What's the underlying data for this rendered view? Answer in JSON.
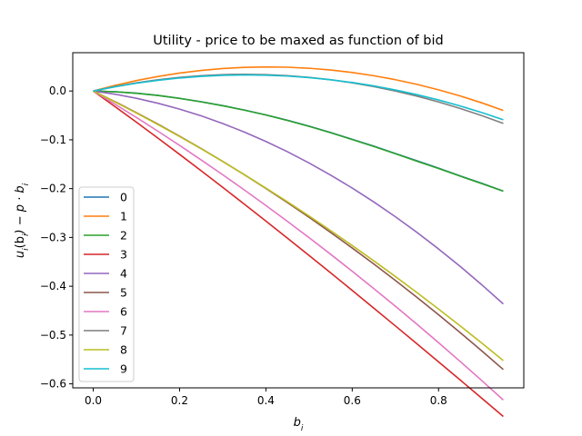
{
  "chart_data": {
    "type": "line",
    "title": "Utility - price to be maxed as function of bid",
    "xlabel_base": "b",
    "xlabel_sub": "i",
    "ylabel_parts": [
      "u",
      "i",
      "(b",
      "i",
      ") − p · b",
      "i"
    ],
    "xlim": [
      -0.0475,
      0.9975
    ],
    "ylim": [
      -0.6082,
      0.0785
    ],
    "x_ticks": [
      0.0,
      0.2,
      0.4,
      0.6,
      0.8
    ],
    "x_tick_labels": [
      "0.0",
      "0.2",
      "0.4",
      "0.6",
      "0.8"
    ],
    "y_ticks": [
      0.0,
      -0.1,
      -0.2,
      -0.3,
      -0.4,
      -0.5,
      -0.6
    ],
    "y_tick_labels": [
      "0.0",
      "−0.1",
      "−0.2",
      "−0.3",
      "−0.4",
      "−0.5",
      "−0.6"
    ],
    "grid": false,
    "legend_position": "lower-left",
    "x": [
      0.0,
      0.05,
      0.1,
      0.15,
      0.2,
      0.25,
      0.3,
      0.35,
      0.4,
      0.45,
      0.5,
      0.55,
      0.6,
      0.65,
      0.7,
      0.75,
      0.8,
      0.85,
      0.9,
      0.95
    ],
    "series": [
      {
        "name": "0",
        "color": "#1f77b4",
        "values": [
          0.0,
          -0.0015,
          -0.0045,
          -0.009,
          -0.015,
          -0.022,
          -0.03,
          -0.039,
          -0.049,
          -0.06,
          -0.072,
          -0.085,
          -0.099,
          -0.113,
          -0.128,
          -0.143,
          -0.158,
          -0.174,
          -0.189,
          -0.205
        ]
      },
      {
        "name": "1",
        "color": "#ff7f0e",
        "values": [
          0.0,
          0.0114,
          0.0214,
          0.0298,
          0.0367,
          0.0421,
          0.046,
          0.0484,
          0.0493,
          0.0487,
          0.0466,
          0.043,
          0.0379,
          0.0313,
          0.0232,
          0.0136,
          0.0025,
          -0.0101,
          -0.0242,
          -0.0398
        ]
      },
      {
        "name": "2",
        "color": "#2ca02c",
        "values": [
          0.0,
          -0.0016,
          -0.0046,
          -0.0091,
          -0.0151,
          -0.0222,
          -0.0302,
          -0.0392,
          -0.0492,
          -0.0604,
          -0.0725,
          -0.0855,
          -0.0994,
          -0.1137,
          -0.1285,
          -0.1438,
          -0.1588,
          -0.1744,
          -0.1898,
          -0.2052
        ]
      },
      {
        "name": "3",
        "color": "#d62728",
        "values": [
          0.0,
          -0.0317,
          -0.0639,
          -0.0966,
          -0.1298,
          -0.1634,
          -0.1974,
          -0.2318,
          -0.2665,
          -0.3016,
          -0.3369,
          -0.3726,
          -0.4086,
          -0.4448,
          -0.4813,
          -0.518,
          -0.5549,
          -0.592,
          -0.6293,
          -0.6668
        ]
      },
      {
        "name": "4",
        "color": "#9467bd",
        "values": [
          0.0,
          -0.0065,
          -0.0149,
          -0.0251,
          -0.0371,
          -0.0509,
          -0.0666,
          -0.0841,
          -0.1034,
          -0.1245,
          -0.1475,
          -0.1723,
          -0.1989,
          -0.2273,
          -0.2576,
          -0.2897,
          -0.3236,
          -0.3593,
          -0.3969,
          -0.4363
        ]
      },
      {
        "name": "5",
        "color": "#8c564b",
        "values": [
          0.0,
          -0.0217,
          -0.0444,
          -0.068,
          -0.0925,
          -0.1179,
          -0.1442,
          -0.1715,
          -0.1997,
          -0.2288,
          -0.2588,
          -0.2898,
          -0.3217,
          -0.3545,
          -0.3882,
          -0.4228,
          -0.4584,
          -0.4949,
          -0.5323,
          -0.5706
        ]
      },
      {
        "name": "6",
        "color": "#e377c2",
        "values": [
          0.0,
          -0.0268,
          -0.0543,
          -0.0825,
          -0.1115,
          -0.1412,
          -0.1716,
          -0.2027,
          -0.2346,
          -0.2672,
          -0.3005,
          -0.3345,
          -0.3693,
          -0.4048,
          -0.441,
          -0.478,
          -0.5157,
          -0.5541,
          -0.5932,
          -0.6331
        ]
      },
      {
        "name": "7",
        "color": "#7f7f7f",
        "values": [
          0.0,
          0.0091,
          0.0168,
          0.0231,
          0.028,
          0.0315,
          0.0336,
          0.0343,
          0.0336,
          0.0315,
          0.028,
          0.0231,
          0.0168,
          0.0091,
          0.0,
          -0.0105,
          -0.0224,
          -0.0357,
          -0.0504,
          -0.0665
        ]
      },
      {
        "name": "8",
        "color": "#bcbd22",
        "values": [
          0.0,
          -0.0222,
          -0.0451,
          -0.0688,
          -0.0933,
          -0.1185,
          -0.1445,
          -0.1713,
          -0.1988,
          -0.2271,
          -0.2562,
          -0.286,
          -0.3166,
          -0.348,
          -0.3801,
          -0.413,
          -0.4467,
          -0.4811,
          -0.5163,
          -0.5523
        ]
      },
      {
        "name": "9",
        "color": "#17becf",
        "values": [
          0.0,
          0.0086,
          0.0159,
          0.0219,
          0.0266,
          0.03,
          0.0321,
          0.0329,
          0.0324,
          0.0306,
          0.0275,
          0.0231,
          0.0174,
          0.0104,
          0.0021,
          -0.0075,
          -0.0184,
          -0.0306,
          -0.0441,
          -0.0589
        ]
      }
    ]
  }
}
